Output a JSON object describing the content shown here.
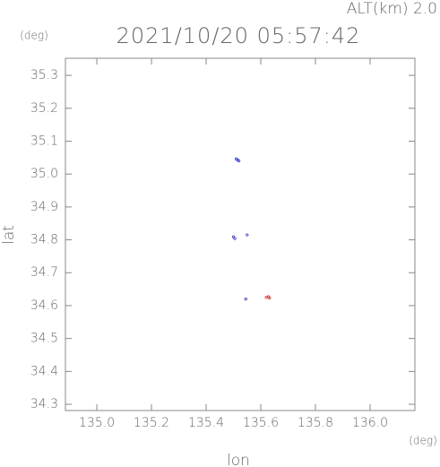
{
  "chart_data": {
    "type": "scatter",
    "title": "2021/10/20 05:57:42",
    "subtitle": "ALT(km) 2.0",
    "y_unit": "(deg)",
    "x_unit": "(deg)",
    "xlabel": "lon",
    "ylabel": "lat",
    "xlim": [
      134.885,
      136.164
    ],
    "ylim": [
      34.281,
      35.352
    ],
    "xticks": [
      {
        "value": 135,
        "label": "135.0"
      },
      135.2,
      135.4,
      135.6,
      135.8,
      {
        "value": 136,
        "label": "136.0"
      }
    ],
    "yticks": [
      35.3,
      35.2,
      35.1,
      {
        "value": 35,
        "label": "35.0"
      },
      34.9,
      34.8,
      34.7,
      34.6,
      34.5,
      34.4,
      34.3
    ],
    "series": [
      {
        "color": "#3333cc",
        "x": [
          135.51,
          135.52,
          135.515,
          135.5,
          135.505,
          135.55,
          135.545
        ],
        "y": [
          35.046,
          35.04,
          35.043,
          34.809,
          34.804,
          34.815,
          34.62
        ]
      },
      {
        "color": "#cc3333",
        "x": [
          135.62,
          135.632,
          135.628
        ],
        "y": [
          34.625,
          34.623,
          34.627
        ]
      }
    ]
  }
}
